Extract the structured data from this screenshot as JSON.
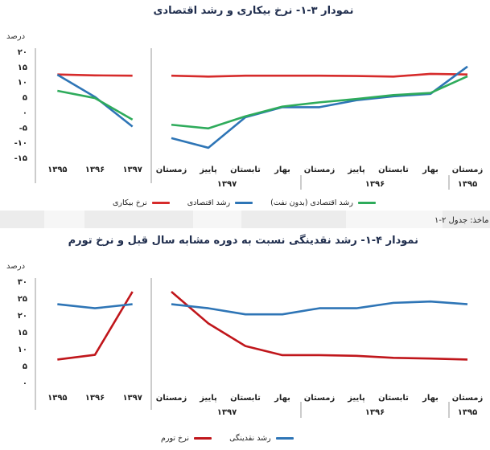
{
  "chart_data": [
    {
      "type": "line",
      "title": "نمودار ۳-۱- نرخ بیکاری و رشد اقتصادی",
      "ylabel": "درصد",
      "ylim": [
        -15,
        20
      ],
      "yticks": [
        "۲۰",
        "۱۵",
        "۱۰",
        "۵",
        "۰",
        "-۵",
        "-۱۰",
        "-۱۵"
      ],
      "y_tick_values": [
        20,
        15,
        10,
        5,
        0,
        -5,
        -10,
        -15
      ],
      "annual_panel": {
        "categories": [
          "۱۳۹۵",
          "۱۳۹۶",
          "۱۳۹۷"
        ],
        "series": [
          {
            "name": "نرخ بیکاری",
            "color": "#d62b2b",
            "values": [
              12.4,
              12.1,
              12.0
            ]
          },
          {
            "name": "رشد اقتصادی",
            "color": "#2e75b6",
            "values": [
              12.3,
              5.0,
              -4.8
            ]
          },
          {
            "name": "رشد اقتصادی (بدون نفت)",
            "color": "#2eab5b",
            "values": [
              7.0,
              4.6,
              -2.5
            ]
          }
        ]
      },
      "quarterly_panel": {
        "categories": [
          "زمستان",
          "بهار",
          "تابستان",
          "پاییز",
          "زمستان",
          "بهار",
          "تابستان",
          "پاییز",
          "زمستان"
        ],
        "year_labels": [
          "۱۳۹۵",
          "۱۳۹۶",
          "۱۳۹۷"
        ],
        "series": [
          {
            "name": "نرخ بیکاری",
            "color": "#d62b2b",
            "values": [
              12.4,
              12.6,
              11.7,
              11.9,
              12.0,
              12.0,
              12.0,
              11.7,
              12.0
            ]
          },
          {
            "name": "رشد اقتصادی",
            "color": "#2e75b6",
            "values": [
              15.0,
              6.0,
              5.2,
              3.9,
              1.6,
              1.6,
              -1.7,
              -11.8,
              -8.6
            ]
          },
          {
            "name": "رشد اقتصادی (بدون نفت)",
            "color": "#2eab5b",
            "values": [
              11.8,
              6.3,
              5.6,
              4.3,
              3.2,
              1.8,
              -1.4,
              -5.4,
              -4.2
            ]
          }
        ]
      },
      "legend_position": "bottom"
    },
    {
      "type": "line",
      "title": "نمودار ۴-۱- رشد نقدینگی نسبت به دوره مشابه سال قبل و نرخ تورم",
      "ylabel": "درصد",
      "ylim": [
        0,
        30
      ],
      "yticks": [
        "۳۰",
        "۲۵",
        "۲۰",
        "۱۵",
        "۱۰",
        "۵",
        "۰"
      ],
      "y_tick_values": [
        30,
        25,
        20,
        15,
        10,
        5,
        0
      ],
      "annual_panel": {
        "categories": [
          "۱۳۹۵",
          "۱۳۹۶",
          "۱۳۹۷"
        ],
        "series": [
          {
            "name": "نرخ تورم",
            "color": "#c0161b",
            "values": [
              6.8,
              8.2,
              26.9
            ]
          },
          {
            "name": "رشد نقدینگی",
            "color": "#2e75b6",
            "values": [
              23.2,
              22.0,
              23.2
            ]
          }
        ]
      },
      "quarterly_panel": {
        "categories": [
          "زمستان",
          "بهار",
          "تابستان",
          "پاییز",
          "زمستان",
          "بهار",
          "تابستان",
          "پاییز",
          "زمستان"
        ],
        "year_labels": [
          "۱۳۹۵",
          "۱۳۹۶",
          "۱۳۹۷"
        ],
        "series": [
          {
            "name": "نرخ تورم",
            "color": "#c0161b",
            "values": [
              6.8,
              7.1,
              7.3,
              7.9,
              8.1,
              8.1,
              10.8,
              17.5,
              26.9
            ]
          },
          {
            "name": "رشد نقدینگی",
            "color": "#2e75b6",
            "values": [
              23.2,
              24.0,
              23.6,
              22.0,
              22.0,
              20.2,
              20.2,
              22.0,
              23.2
            ]
          }
        ]
      },
      "legend_position": "bottom"
    }
  ],
  "source_fragment": "ماخذ: جدول ۲-۱"
}
